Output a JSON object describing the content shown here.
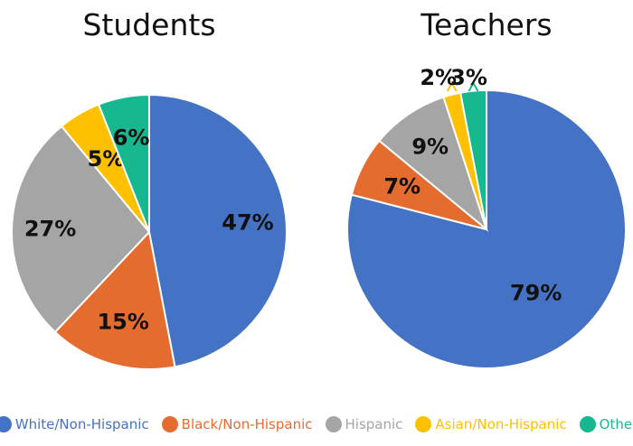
{
  "chart_data": [
    {
      "type": "pie",
      "title": "Students",
      "categories": [
        "White/Non-Hispanic",
        "Black/Non-Hispanic",
        "Hispanic",
        "Asian/Non-Hispanic",
        "Other"
      ],
      "values": [
        47,
        15,
        27,
        5,
        6
      ],
      "value_labels": [
        "47%",
        "15%",
        "27%",
        "5%",
        "6%"
      ],
      "start_angle": "12 o'clock",
      "direction": "clockwise"
    },
    {
      "type": "pie",
      "title": "Teachers",
      "categories": [
        "White/Non-Hispanic",
        "Black/Non-Hispanic",
        "Hispanic",
        "Asian/Non-Hispanic",
        "Other"
      ],
      "values": [
        79,
        7,
        9,
        2,
        3
      ],
      "value_labels": [
        "79%",
        "7%",
        "9%",
        "2%",
        "3%"
      ],
      "start_angle": "12 o'clock",
      "direction": "clockwise"
    }
  ],
  "legend": [
    {
      "label": "White/Non-Hispanic",
      "color": "#4472C4"
    },
    {
      "label": "Black/Non-Hispanic",
      "color": "#E46C2F"
    },
    {
      "label": "Hispanic",
      "color": "#A5A5A5"
    },
    {
      "label": "Asian/Non-Hispanic",
      "color": "#FFC000"
    },
    {
      "label": "Other",
      "color": "#17B890"
    }
  ],
  "legend_placement": "bottom"
}
